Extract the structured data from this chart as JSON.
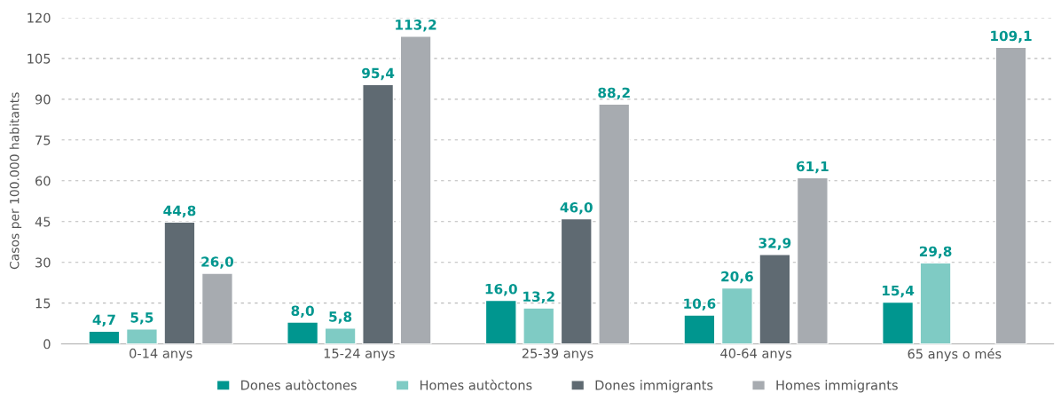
{
  "chart_data": {
    "type": "bar",
    "ylabel": "Casos per 100.000 habitants",
    "categories": [
      "0-14 anys",
      "15-24 anys",
      "25-39 anys",
      "40-64 anys",
      "65 anys o més"
    ],
    "series": [
      {
        "name": "Dones autòctones",
        "color": "#00968f",
        "values": [
          4.7,
          8.0,
          16.0,
          10.6,
          15.4
        ],
        "value_labels": [
          "4,7",
          "8,0",
          "16,0",
          "10,6",
          "15,4"
        ]
      },
      {
        "name": "Homes autòctons",
        "color": "#7fcbc4",
        "values": [
          5.5,
          5.8,
          13.2,
          20.6,
          29.8
        ],
        "value_labels": [
          "5,5",
          "5,8",
          "13,2",
          "20,6",
          "29,8"
        ]
      },
      {
        "name": "Dones immigrants",
        "color": "#5f6a72",
        "values": [
          44.8,
          95.4,
          46.0,
          32.9,
          null
        ],
        "value_labels": [
          "44,8",
          "95,4",
          "46,0",
          "32,9",
          null
        ]
      },
      {
        "name": "Homes immigrants",
        "color": "#a7abb0",
        "values": [
          26.0,
          113.2,
          88.2,
          61.1,
          109.1
        ],
        "value_labels": [
          "26,0",
          "113,2",
          "88,2",
          "61,1",
          "109,1"
        ]
      }
    ],
    "ylim": [
      0,
      120
    ],
    "yticks": [
      0,
      15,
      30,
      45,
      60,
      75,
      90,
      105,
      120
    ],
    "grid": "y",
    "legend": "bottom"
  }
}
